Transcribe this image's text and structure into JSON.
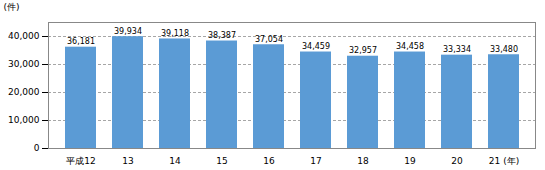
{
  "chart_data": {
    "type": "bar",
    "ylabel": "(件)",
    "categories": [
      "平成12",
      "13",
      "14",
      "15",
      "16",
      "17",
      "18",
      "19",
      "20",
      "21 (年)"
    ],
    "values": [
      36181,
      39934,
      39118,
      38387,
      37054,
      34459,
      32957,
      34458,
      33334,
      33480
    ],
    "value_labels": [
      "36,181",
      "39,934",
      "39,118",
      "38,387",
      "37,054",
      "34,459",
      "32,957",
      "34,458",
      "33,334",
      "33,480"
    ],
    "color": "#5b9bd5",
    "ylim": [
      0,
      45000
    ],
    "yticks": [
      0,
      {
        "value": 10000,
        "label": "10,000"
      },
      {
        "value": 20000,
        "label": "20,000"
      },
      {
        "value": 30000,
        "label": "30,000"
      },
      {
        "value": 40000,
        "label": "40,000"
      }
    ],
    "grid": true,
    "data_labels": true
  }
}
